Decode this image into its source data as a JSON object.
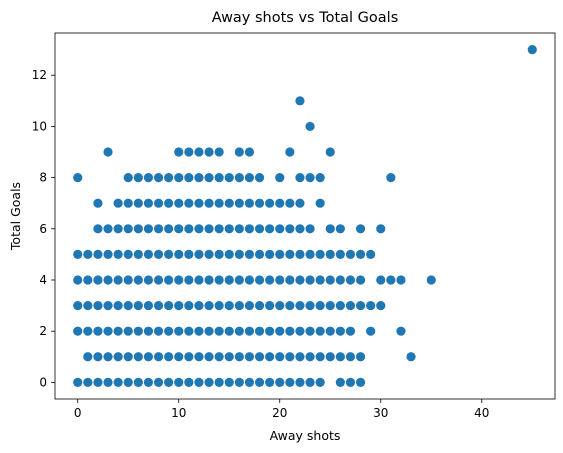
{
  "chart_data": {
    "type": "scatter",
    "title": "Away shots vs Total Goals",
    "xlabel": "Away shots",
    "ylabel": "Total Goals",
    "xlim": [
      -2.25,
      47.25
    ],
    "ylim": [
      -0.65,
      13.65
    ],
    "xticks": [
      0,
      10,
      20,
      30,
      40
    ],
    "yticks": [
      0,
      2,
      4,
      6,
      8,
      10,
      12
    ],
    "grid": false,
    "marker_color": "#1f77b4",
    "points_by_y": [
      {
        "y": 0,
        "x": [
          0,
          1,
          2,
          3,
          4,
          5,
          6,
          7,
          8,
          9,
          10,
          11,
          12,
          13,
          14,
          15,
          16,
          17,
          18,
          19,
          20,
          21,
          22,
          23,
          24,
          26,
          27,
          28
        ]
      },
      {
        "y": 1,
        "x": [
          1,
          2,
          3,
          4,
          5,
          6,
          7,
          8,
          9,
          10,
          11,
          12,
          13,
          14,
          15,
          16,
          17,
          18,
          19,
          20,
          21,
          22,
          23,
          24,
          25,
          26,
          27,
          28,
          33
        ]
      },
      {
        "y": 2,
        "x": [
          0,
          1,
          2,
          3,
          4,
          5,
          6,
          7,
          8,
          9,
          10,
          11,
          12,
          13,
          14,
          15,
          16,
          17,
          18,
          19,
          20,
          21,
          22,
          23,
          24,
          25,
          26,
          27,
          29,
          32
        ]
      },
      {
        "y": 3,
        "x": [
          0,
          1,
          2,
          3,
          4,
          5,
          6,
          7,
          8,
          9,
          10,
          11,
          12,
          13,
          14,
          15,
          16,
          17,
          18,
          19,
          20,
          21,
          22,
          23,
          24,
          25,
          26,
          27,
          28,
          29,
          30
        ]
      },
      {
        "y": 4,
        "x": [
          0,
          1,
          2,
          3,
          4,
          5,
          6,
          7,
          8,
          9,
          10,
          11,
          12,
          13,
          14,
          15,
          16,
          17,
          18,
          19,
          20,
          21,
          22,
          23,
          24,
          25,
          26,
          27,
          28,
          30,
          31,
          32,
          35
        ]
      },
      {
        "y": 5,
        "x": [
          0,
          1,
          2,
          3,
          4,
          5,
          6,
          7,
          8,
          9,
          10,
          11,
          12,
          13,
          14,
          15,
          16,
          17,
          18,
          19,
          20,
          21,
          22,
          23,
          24,
          25,
          26,
          27,
          28,
          29
        ]
      },
      {
        "y": 6,
        "x": [
          2,
          3,
          4,
          5,
          6,
          7,
          8,
          9,
          10,
          11,
          12,
          13,
          14,
          15,
          16,
          17,
          18,
          19,
          20,
          21,
          22,
          23,
          25,
          26,
          28,
          30
        ]
      },
      {
        "y": 7,
        "x": [
          2,
          4,
          5,
          6,
          7,
          8,
          9,
          10,
          11,
          12,
          13,
          14,
          15,
          16,
          17,
          18,
          19,
          20,
          21,
          22,
          24
        ]
      },
      {
        "y": 8,
        "x": [
          0,
          5,
          6,
          7,
          8,
          9,
          10,
          11,
          12,
          13,
          14,
          15,
          16,
          17,
          18,
          20,
          22,
          23,
          24,
          31
        ]
      },
      {
        "y": 9,
        "x": [
          3,
          10,
          11,
          12,
          13,
          14,
          16,
          17,
          21,
          25
        ]
      },
      {
        "y": 10,
        "x": [
          23
        ]
      },
      {
        "y": 11,
        "x": [
          22
        ]
      },
      {
        "y": 13,
        "x": [
          45
        ]
      }
    ]
  }
}
